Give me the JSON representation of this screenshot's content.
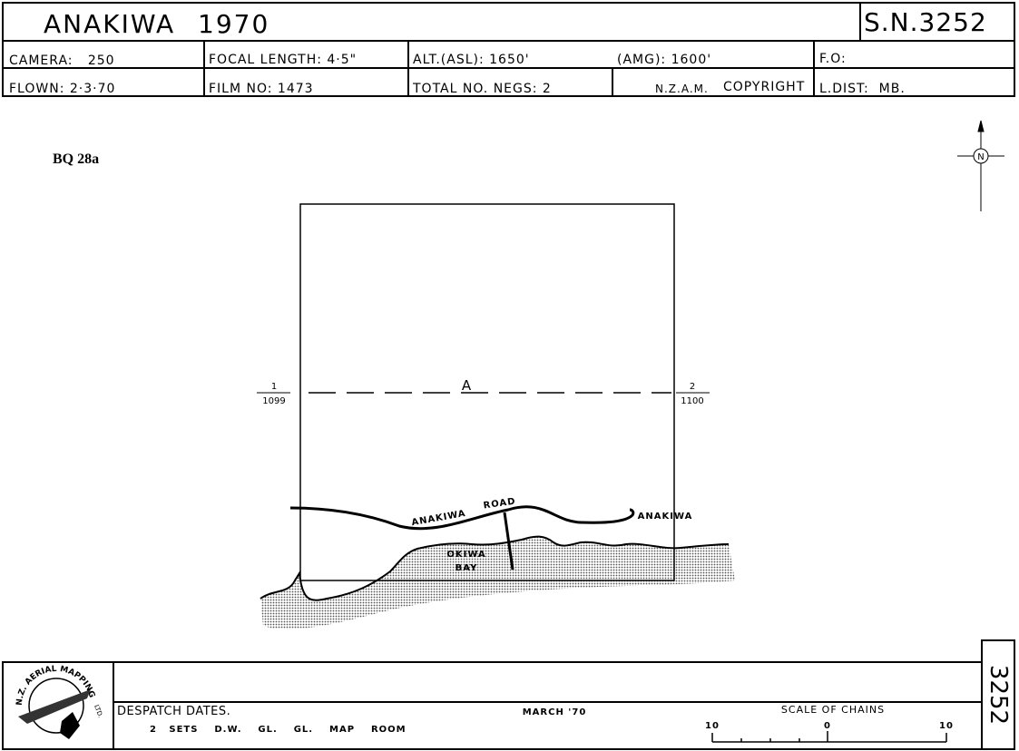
{
  "header": {
    "title": "ANAKIWA",
    "year": "1970",
    "sheet": "S.N.3252"
  },
  "info": {
    "rows": [
      [
        "CAMERA:   250",
        "FOCAL LENGTH: 4·5\"",
        "ALT.(ASL): 1650'",
        "(AMG): 1600'",
        "F.O:"
      ],
      [
        "FLOWN: 2·3·70",
        "FILM NO: 1473",
        "TOTAL NO. NEGS: 2",
        "N.Z.A.M.",
        "COPYRIGHT",
        "L.DIST:  MB."
      ]
    ]
  },
  "reference": "BQ 28a",
  "north": "N",
  "map": {
    "run": "A",
    "start_photo": "1",
    "start_neg": "1099",
    "end_photo": "2",
    "end_neg": "1100",
    "labels": [
      "ANAKIWA",
      "ROAD",
      "ANAKIWA",
      "OKIWA",
      "BAY"
    ]
  },
  "footer": {
    "logo": "N.Z. AERIAL MAPPING",
    "logo_ltd": "LTD.",
    "despatch_label": "DESPATCH DATES.",
    "sets": "2   SETS    D.W.    GL.    GL.    MAP    ROOM",
    "date": "MARCH '70",
    "scale_label": "SCALE OF CHAINS",
    "scale_ticks": [
      "10",
      "0",
      "10"
    ],
    "side_number": "3252"
  }
}
